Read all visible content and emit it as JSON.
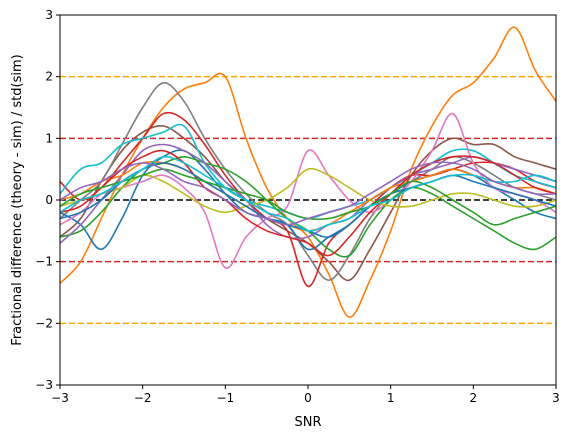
{
  "chart_data": {
    "type": "line",
    "title": "",
    "xlabel": "SNR",
    "ylabel": "Fractional difference (theory - sim) / std(sim)",
    "xlim": [
      -3,
      3
    ],
    "ylim": [
      -3,
      3
    ],
    "xticks": [
      -3,
      -2,
      -1,
      0,
      1,
      2,
      3
    ],
    "xtick_labels": [
      "−3",
      "−2",
      "−1",
      "0",
      "1",
      "2",
      "3"
    ],
    "yticks": [
      -3,
      -2,
      -1,
      0,
      1,
      2,
      3
    ],
    "ytick_labels": [
      "−3",
      "−2",
      "−1",
      "0",
      "1",
      "2",
      "3"
    ],
    "grid": false,
    "legend": "none",
    "reference_lines": [
      {
        "y": 2,
        "color": "#ffa500",
        "style": "dashed"
      },
      {
        "y": 1,
        "color": "#d62728",
        "style": "dashed"
      },
      {
        "y": 0,
        "color": "#000000",
        "style": "dashed"
      },
      {
        "y": -1,
        "color": "#d62728",
        "style": "dashed"
      },
      {
        "y": -2,
        "color": "#ffa500",
        "style": "dashed"
      }
    ],
    "x": [
      -3.0,
      -2.75,
      -2.5,
      -2.25,
      -2.0,
      -1.75,
      -1.5,
      -1.25,
      -1.0,
      -0.75,
      -0.5,
      -0.25,
      0.0,
      0.25,
      0.5,
      0.75,
      1.0,
      1.25,
      1.5,
      1.75,
      2.0,
      2.25,
      2.5,
      2.75,
      3.0
    ],
    "series": [
      {
        "color": "#ff7f0e",
        "values": [
          -1.35,
          -1.0,
          -0.3,
          0.4,
          1.0,
          1.5,
          1.8,
          1.9,
          2.0,
          1.0,
          0.2,
          -0.3,
          -0.6,
          -1.2,
          -1.9,
          -1.3,
          -0.5,
          0.5,
          1.2,
          1.7,
          1.9,
          2.3,
          2.8,
          2.1,
          1.6
        ]
      },
      {
        "color": "#8c564b",
        "values": [
          -0.6,
          -0.3,
          0.3,
          0.8,
          1.1,
          1.2,
          1.0,
          0.7,
          0.3,
          0.0,
          -0.3,
          -0.5,
          -0.7,
          -1.0,
          -1.3,
          -0.8,
          -0.2,
          0.4,
          0.8,
          1.0,
          0.9,
          0.9,
          0.7,
          0.6,
          0.5
        ]
      },
      {
        "color": "#7f7f7f",
        "values": [
          -0.3,
          0.0,
          0.3,
          0.9,
          1.5,
          1.9,
          1.6,
          1.0,
          0.5,
          0.1,
          -0.2,
          -0.4,
          -0.9,
          -1.3,
          -0.9,
          -0.3,
          0.1,
          0.3,
          0.5,
          0.7,
          0.6,
          0.4,
          0.2,
          0.1,
          0.0
        ]
      },
      {
        "color": "#d62728",
        "values": [
          0.3,
          0.0,
          0.2,
          0.6,
          1.0,
          1.4,
          1.3,
          0.9,
          0.4,
          0.0,
          -0.3,
          -0.5,
          -1.4,
          -0.7,
          -0.4,
          -0.1,
          0.2,
          0.4,
          0.4,
          0.5,
          0.6,
          0.6,
          0.5,
          0.3,
          0.2
        ]
      },
      {
        "color": "#1f77b4",
        "values": [
          -0.2,
          -0.4,
          -0.8,
          -0.3,
          0.4,
          0.7,
          0.8,
          0.5,
          0.1,
          -0.2,
          -0.3,
          -0.4,
          -0.8,
          -0.6,
          -0.4,
          -0.1,
          0.1,
          0.3,
          0.4,
          0.5,
          0.4,
          0.2,
          0.0,
          -0.2,
          -0.3
        ]
      },
      {
        "color": "#17becf",
        "values": [
          0.1,
          0.5,
          0.6,
          0.9,
          1.0,
          1.1,
          1.2,
          0.6,
          0.2,
          0.0,
          -0.1,
          -0.2,
          -0.3,
          -0.2,
          -0.1,
          0.0,
          0.2,
          0.4,
          0.6,
          0.8,
          0.8,
          0.6,
          0.4,
          0.3,
          0.2
        ]
      },
      {
        "color": "#e377c2",
        "values": [
          -0.4,
          -0.2,
          0.1,
          0.2,
          0.3,
          0.4,
          0.2,
          -0.2,
          -1.1,
          -0.6,
          -0.3,
          -0.1,
          0.8,
          0.4,
          0.0,
          -0.2,
          0.0,
          0.3,
          0.8,
          1.4,
          0.6,
          0.2,
          0.1,
          0.0,
          -0.2
        ]
      },
      {
        "color": "#2ca02c",
        "values": [
          -0.6,
          -0.5,
          -0.2,
          0.2,
          0.5,
          0.6,
          0.7,
          0.6,
          0.5,
          0.3,
          0.0,
          -0.3,
          -0.5,
          -0.8,
          -0.9,
          -0.4,
          0.0,
          0.2,
          0.1,
          -0.1,
          -0.3,
          -0.5,
          -0.7,
          -0.8,
          -0.6
        ]
      },
      {
        "color": "#bcbd22",
        "values": [
          -0.1,
          0.0,
          0.1,
          0.2,
          0.4,
          0.3,
          0.1,
          -0.1,
          -0.2,
          -0.1,
          0.0,
          0.2,
          0.5,
          0.4,
          0.2,
          0.0,
          -0.1,
          -0.1,
          0.0,
          0.1,
          0.1,
          0.0,
          -0.1,
          -0.1,
          0.0
        ]
      },
      {
        "color": "#9467bd",
        "values": [
          -0.7,
          -0.4,
          0.0,
          0.4,
          0.8,
          0.9,
          0.8,
          0.6,
          0.3,
          0.0,
          -0.4,
          -0.6,
          -0.6,
          -0.4,
          -0.3,
          0.0,
          0.2,
          0.4,
          0.5,
          0.6,
          0.7,
          0.6,
          0.5,
          0.4,
          0.3
        ]
      },
      {
        "color": "#ff7f0e",
        "values": [
          0.0,
          0.1,
          0.3,
          0.4,
          0.6,
          0.6,
          0.5,
          0.3,
          0.1,
          -0.1,
          -0.3,
          -0.4,
          -0.5,
          -0.4,
          -0.2,
          0.0,
          0.2,
          0.3,
          0.4,
          0.5,
          0.4,
          0.3,
          0.2,
          0.2,
          0.1
        ]
      },
      {
        "color": "#d62728",
        "values": [
          -0.2,
          -0.1,
          0.2,
          0.5,
          0.7,
          0.8,
          0.6,
          0.2,
          0.0,
          -0.3,
          -0.5,
          -0.6,
          -0.7,
          -0.9,
          -0.6,
          -0.2,
          0.1,
          0.4,
          0.6,
          0.7,
          0.7,
          0.6,
          0.4,
          0.2,
          0.1
        ]
      },
      {
        "color": "#1f77b4",
        "values": [
          -0.3,
          -0.2,
          0.0,
          0.3,
          0.5,
          0.6,
          0.5,
          0.3,
          0.1,
          -0.1,
          -0.3,
          -0.4,
          -0.5,
          -0.6,
          -0.4,
          -0.1,
          0.1,
          0.2,
          0.3,
          0.4,
          0.3,
          0.2,
          0.1,
          0.0,
          -0.1
        ]
      },
      {
        "color": "#2ca02c",
        "values": [
          -0.1,
          0.1,
          0.2,
          0.3,
          0.4,
          0.5,
          0.4,
          0.3,
          0.2,
          0.1,
          0.0,
          -0.2,
          -0.3,
          -0.3,
          -0.2,
          -0.1,
          0.1,
          0.3,
          0.2,
          0.0,
          -0.2,
          -0.4,
          -0.3,
          -0.2,
          -0.1
        ]
      },
      {
        "color": "#17becf",
        "values": [
          -0.2,
          0.0,
          0.1,
          0.3,
          0.5,
          0.7,
          0.6,
          0.4,
          0.2,
          0.0,
          -0.2,
          -0.3,
          -0.5,
          -0.4,
          -0.3,
          -0.1,
          0.0,
          0.2,
          0.3,
          0.4,
          0.4,
          0.3,
          0.3,
          0.4,
          0.3
        ]
      },
      {
        "color": "#9467bd",
        "values": [
          0.0,
          0.2,
          0.3,
          0.5,
          0.6,
          0.5,
          0.3,
          0.2,
          0.0,
          -0.2,
          -0.3,
          -0.4,
          -0.3,
          -0.2,
          -0.1,
          0.1,
          0.3,
          0.5,
          0.6,
          0.6,
          0.5,
          0.3,
          0.2,
          0.1,
          0.1
        ]
      }
    ]
  }
}
